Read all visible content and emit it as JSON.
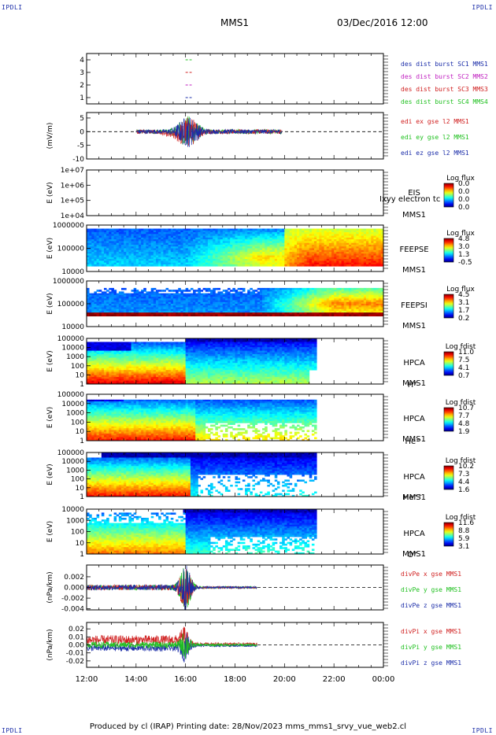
{
  "corners": {
    "tl": "IPDLI",
    "tr": "IPDLI",
    "bl": "IPDLI",
    "br": "IPDLI"
  },
  "header": {
    "spacecraft": "MMS1",
    "datetime": "03/Dec/2016 12:00"
  },
  "footer": {
    "text": "Produced by cl (IRAP)   Printing date: 28/Nov/2023   mms_mms1_srvy_vue_web2.cl"
  },
  "chart_data": [
    {
      "id": "p1",
      "type": "line",
      "y_ticks": [
        "4",
        "3",
        "2",
        "1"
      ],
      "ylim": [
        0.5,
        4.5
      ],
      "series": [
        {
          "name": "des dist burst SC1 MMS1",
          "color": "#1a2ca8",
          "y": 1
        },
        {
          "name": "des dist burst SC2 MMS2",
          "color": "#c020c0",
          "y": 2
        },
        {
          "name": "des dist burst SC3 MMS3",
          "color": "#d02020",
          "y": 3
        },
        {
          "name": "des dist burst SC4 MMS4",
          "color": "#20c020",
          "y": 4
        }
      ],
      "x_range_hours": [
        16.0,
        16.25
      ]
    },
    {
      "id": "p2",
      "type": "line",
      "ylabel": "(mV/m)",
      "y_ticks": [
        "5",
        "0",
        "-5",
        "-10"
      ],
      "ylim": [
        -10,
        7
      ],
      "series": [
        {
          "name": "edi ex gse l2 MMS1",
          "color": "#d02020"
        },
        {
          "name": "edi ey gse l2 MMS1",
          "color": "#20c020"
        },
        {
          "name": "edi ez gse l2 MMS1",
          "color": "#1a2ca8"
        }
      ],
      "x_range_hours": [
        14.0,
        19.9
      ]
    },
    {
      "id": "p3",
      "type": "heatmap",
      "ylabel": "E (eV)",
      "y_ticks": [
        "1e+07",
        "1e+06",
        "1e+05",
        "1e+04"
      ],
      "inst": "EIS",
      "sc": "MMS1",
      "overlay": "Ixyy electron tc",
      "cb_title": "Log flux",
      "cb_ticks": [
        "0.0",
        "0.0",
        "0.0",
        "0.0"
      ]
    },
    {
      "id": "p4",
      "type": "heatmap",
      "ylabel": "E (eV)",
      "y_ticks": [
        "1000000",
        "100000",
        "10000"
      ],
      "inst": "FEEPSE",
      "sc": "MMS1",
      "cb_title": "Log flux",
      "cb_ticks": [
        "4.8",
        "3.0",
        "1.3",
        "-0.5"
      ]
    },
    {
      "id": "p5",
      "type": "heatmap",
      "ylabel": "E (eV)",
      "y_ticks": [
        "1000000",
        "100000",
        "10000"
      ],
      "inst": "FEEPSI",
      "sc": "MMS1",
      "cb_title": "Log flux",
      "cb_ticks": [
        "4.5",
        "3.1",
        "1.7",
        "0.2"
      ]
    },
    {
      "id": "p6",
      "type": "heatmap",
      "ylabel": "E (eV)",
      "y_ticks": [
        "100000",
        "10000",
        "1000",
        "100",
        "10",
        "1"
      ],
      "inst": "HPCA",
      "sc": "MMS1",
      "species": "H⁺",
      "cb_title": "Log fdist",
      "cb_ticks": [
        "11.0",
        "7.5",
        "4.1",
        "0.7"
      ]
    },
    {
      "id": "p7",
      "type": "heatmap",
      "ylabel": "E (eV)",
      "y_ticks": [
        "100000",
        "10000",
        "1000",
        "100",
        "10",
        "1"
      ],
      "inst": "HPCA",
      "sc": "MMS1",
      "species": "He⁺",
      "cb_title": "Log fdist",
      "cb_ticks": [
        "10.7",
        "7.7",
        "4.8",
        "1.9"
      ]
    },
    {
      "id": "p8",
      "type": "heatmap",
      "ylabel": "E (eV)",
      "y_ticks": [
        "100000",
        "10000",
        "1000",
        "100",
        "10",
        "1"
      ],
      "inst": "HPCA",
      "sc": "MMS1",
      "species": "He⁺⁺",
      "cb_title": "Log fdist",
      "cb_ticks": [
        "10.2",
        "7.3",
        "4.4",
        "1.6"
      ]
    },
    {
      "id": "p9",
      "type": "heatmap",
      "ylabel": "E (eV)",
      "y_ticks": [
        "10000",
        "1000",
        "100",
        "10",
        "1"
      ],
      "inst": "HPCA",
      "sc": "MMS1",
      "species": "O⁺",
      "cb_title": "Log fdist",
      "cb_ticks": [
        "11.6",
        "8.8",
        "5.9",
        "3.1"
      ]
    },
    {
      "id": "p10",
      "type": "line",
      "ylabel": "(nPa/km)",
      "y_ticks": [
        "0.002",
        "0.000",
        "-0.002",
        "-0.004"
      ],
      "ylim": [
        -0.0042,
        0.0042
      ],
      "series": [
        {
          "name": "divPe x gse MMS1",
          "color": "#d02020"
        },
        {
          "name": "divPe y gse MMS1",
          "color": "#20c020"
        },
        {
          "name": "divPe z gse MMS1",
          "color": "#1a2ca8"
        }
      ],
      "x_range_hours": [
        12.0,
        18.9
      ]
    },
    {
      "id": "p11",
      "type": "line",
      "ylabel": "(nPa/km)",
      "y_ticks": [
        "0.02",
        "0.01",
        "0.00",
        "-0.01",
        "-0.02"
      ],
      "ylim": [
        -0.028,
        0.028
      ],
      "series": [
        {
          "name": "divPi x gse MMS1",
          "color": "#d02020"
        },
        {
          "name": "divPi y gse MMS1",
          "color": "#20c020"
        },
        {
          "name": "divPi z gse MMS1",
          "color": "#1a2ca8"
        }
      ],
      "x_range_hours": [
        12.0,
        18.9
      ]
    }
  ],
  "x_axis": {
    "range_hours": [
      12,
      24
    ],
    "tick_labels": [
      "12:00",
      "14:00",
      "16:00",
      "18:00",
      "20:00",
      "22:00",
      "00:00"
    ]
  }
}
